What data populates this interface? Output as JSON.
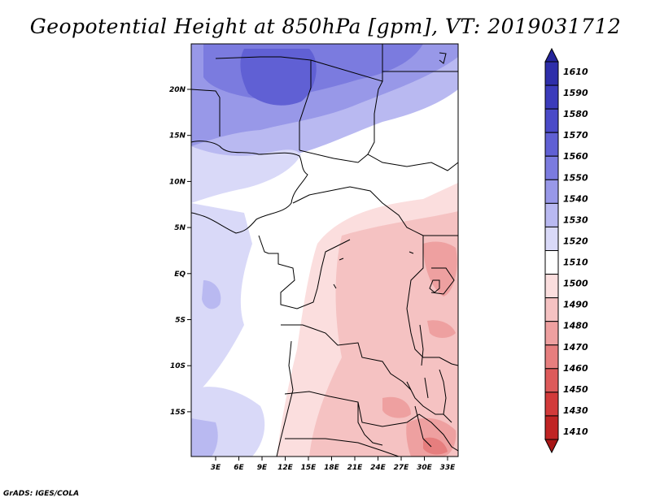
{
  "title": "Geopotential Height at 850hPa [gpm], VT: 2019031712",
  "credit": "GrADS: IGES/COLA",
  "map": {
    "x_ticks": [
      "3E",
      "6E",
      "9E",
      "12E",
      "15E",
      "18E",
      "21E",
      "24E",
      "27E",
      "30E",
      "33E"
    ],
    "y_ticks": [
      "20N",
      "15N",
      "10N",
      "5N",
      "EQ",
      "5S",
      "10S",
      "15S"
    ]
  },
  "colorbar": {
    "levels": [
      "1610",
      "1590",
      "1580",
      "1570",
      "1560",
      "1550",
      "1540",
      "1530",
      "1520",
      "1510",
      "1500",
      "1490",
      "1480",
      "1470",
      "1460",
      "1450",
      "1430",
      "1410"
    ],
    "colors": [
      "#24249a",
      "#2e2eaa",
      "#3b3bbb",
      "#4a4ac8",
      "#6060d4",
      "#7b7bdf",
      "#9898e8",
      "#b9b9f1",
      "#d9d9f8",
      "#ffffff",
      "#fbdede",
      "#f5c2c2",
      "#eea0a0",
      "#e67e7e",
      "#dd5a5a",
      "#d23a3a",
      "#c02424",
      "#a81616"
    ]
  }
}
